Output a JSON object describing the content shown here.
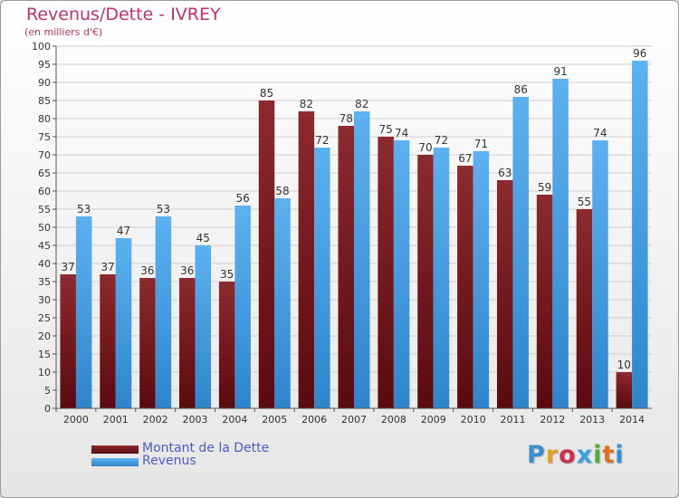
{
  "title": "Revenus/Dette - IVREY",
  "subtitle": "(en milliers d'€)",
  "logo": {
    "text": "Proxiti",
    "letter_colors": [
      "#3a8fd0",
      "#e8a020",
      "#c83050",
      "#3aa0e0",
      "#4fae3a",
      "#e07020",
      "#3a8fd0"
    ]
  },
  "colors": {
    "dette": "#7a1a1e",
    "revenus": "#4aa3e8",
    "title": "#c0326a",
    "legend_text": "#4a5bc8"
  },
  "chart_data": {
    "type": "bar",
    "categories": [
      "2000",
      "2001",
      "2002",
      "2003",
      "2004",
      "2005",
      "2006",
      "2007",
      "2008",
      "2009",
      "2010",
      "2011",
      "2012",
      "2013",
      "2014"
    ],
    "series": [
      {
        "name": "Montant de la Dette",
        "values": [
          37,
          37,
          36,
          36,
          35,
          85,
          82,
          78,
          75,
          70,
          67,
          63,
          59,
          55,
          10
        ]
      },
      {
        "name": "Revenus",
        "values": [
          53,
          47,
          53,
          45,
          56,
          58,
          72,
          82,
          74,
          72,
          71,
          86,
          91,
          74,
          96
        ]
      }
    ],
    "title": "Revenus/Dette - IVREY",
    "subtitle": "(en milliers d'€)",
    "ylim": [
      0,
      100
    ],
    "yticks": [
      0,
      5,
      10,
      15,
      20,
      25,
      30,
      35,
      40,
      45,
      50,
      55,
      60,
      65,
      70,
      75,
      80,
      85,
      90,
      95,
      100
    ],
    "grid": true,
    "legend": "bottom-left"
  }
}
